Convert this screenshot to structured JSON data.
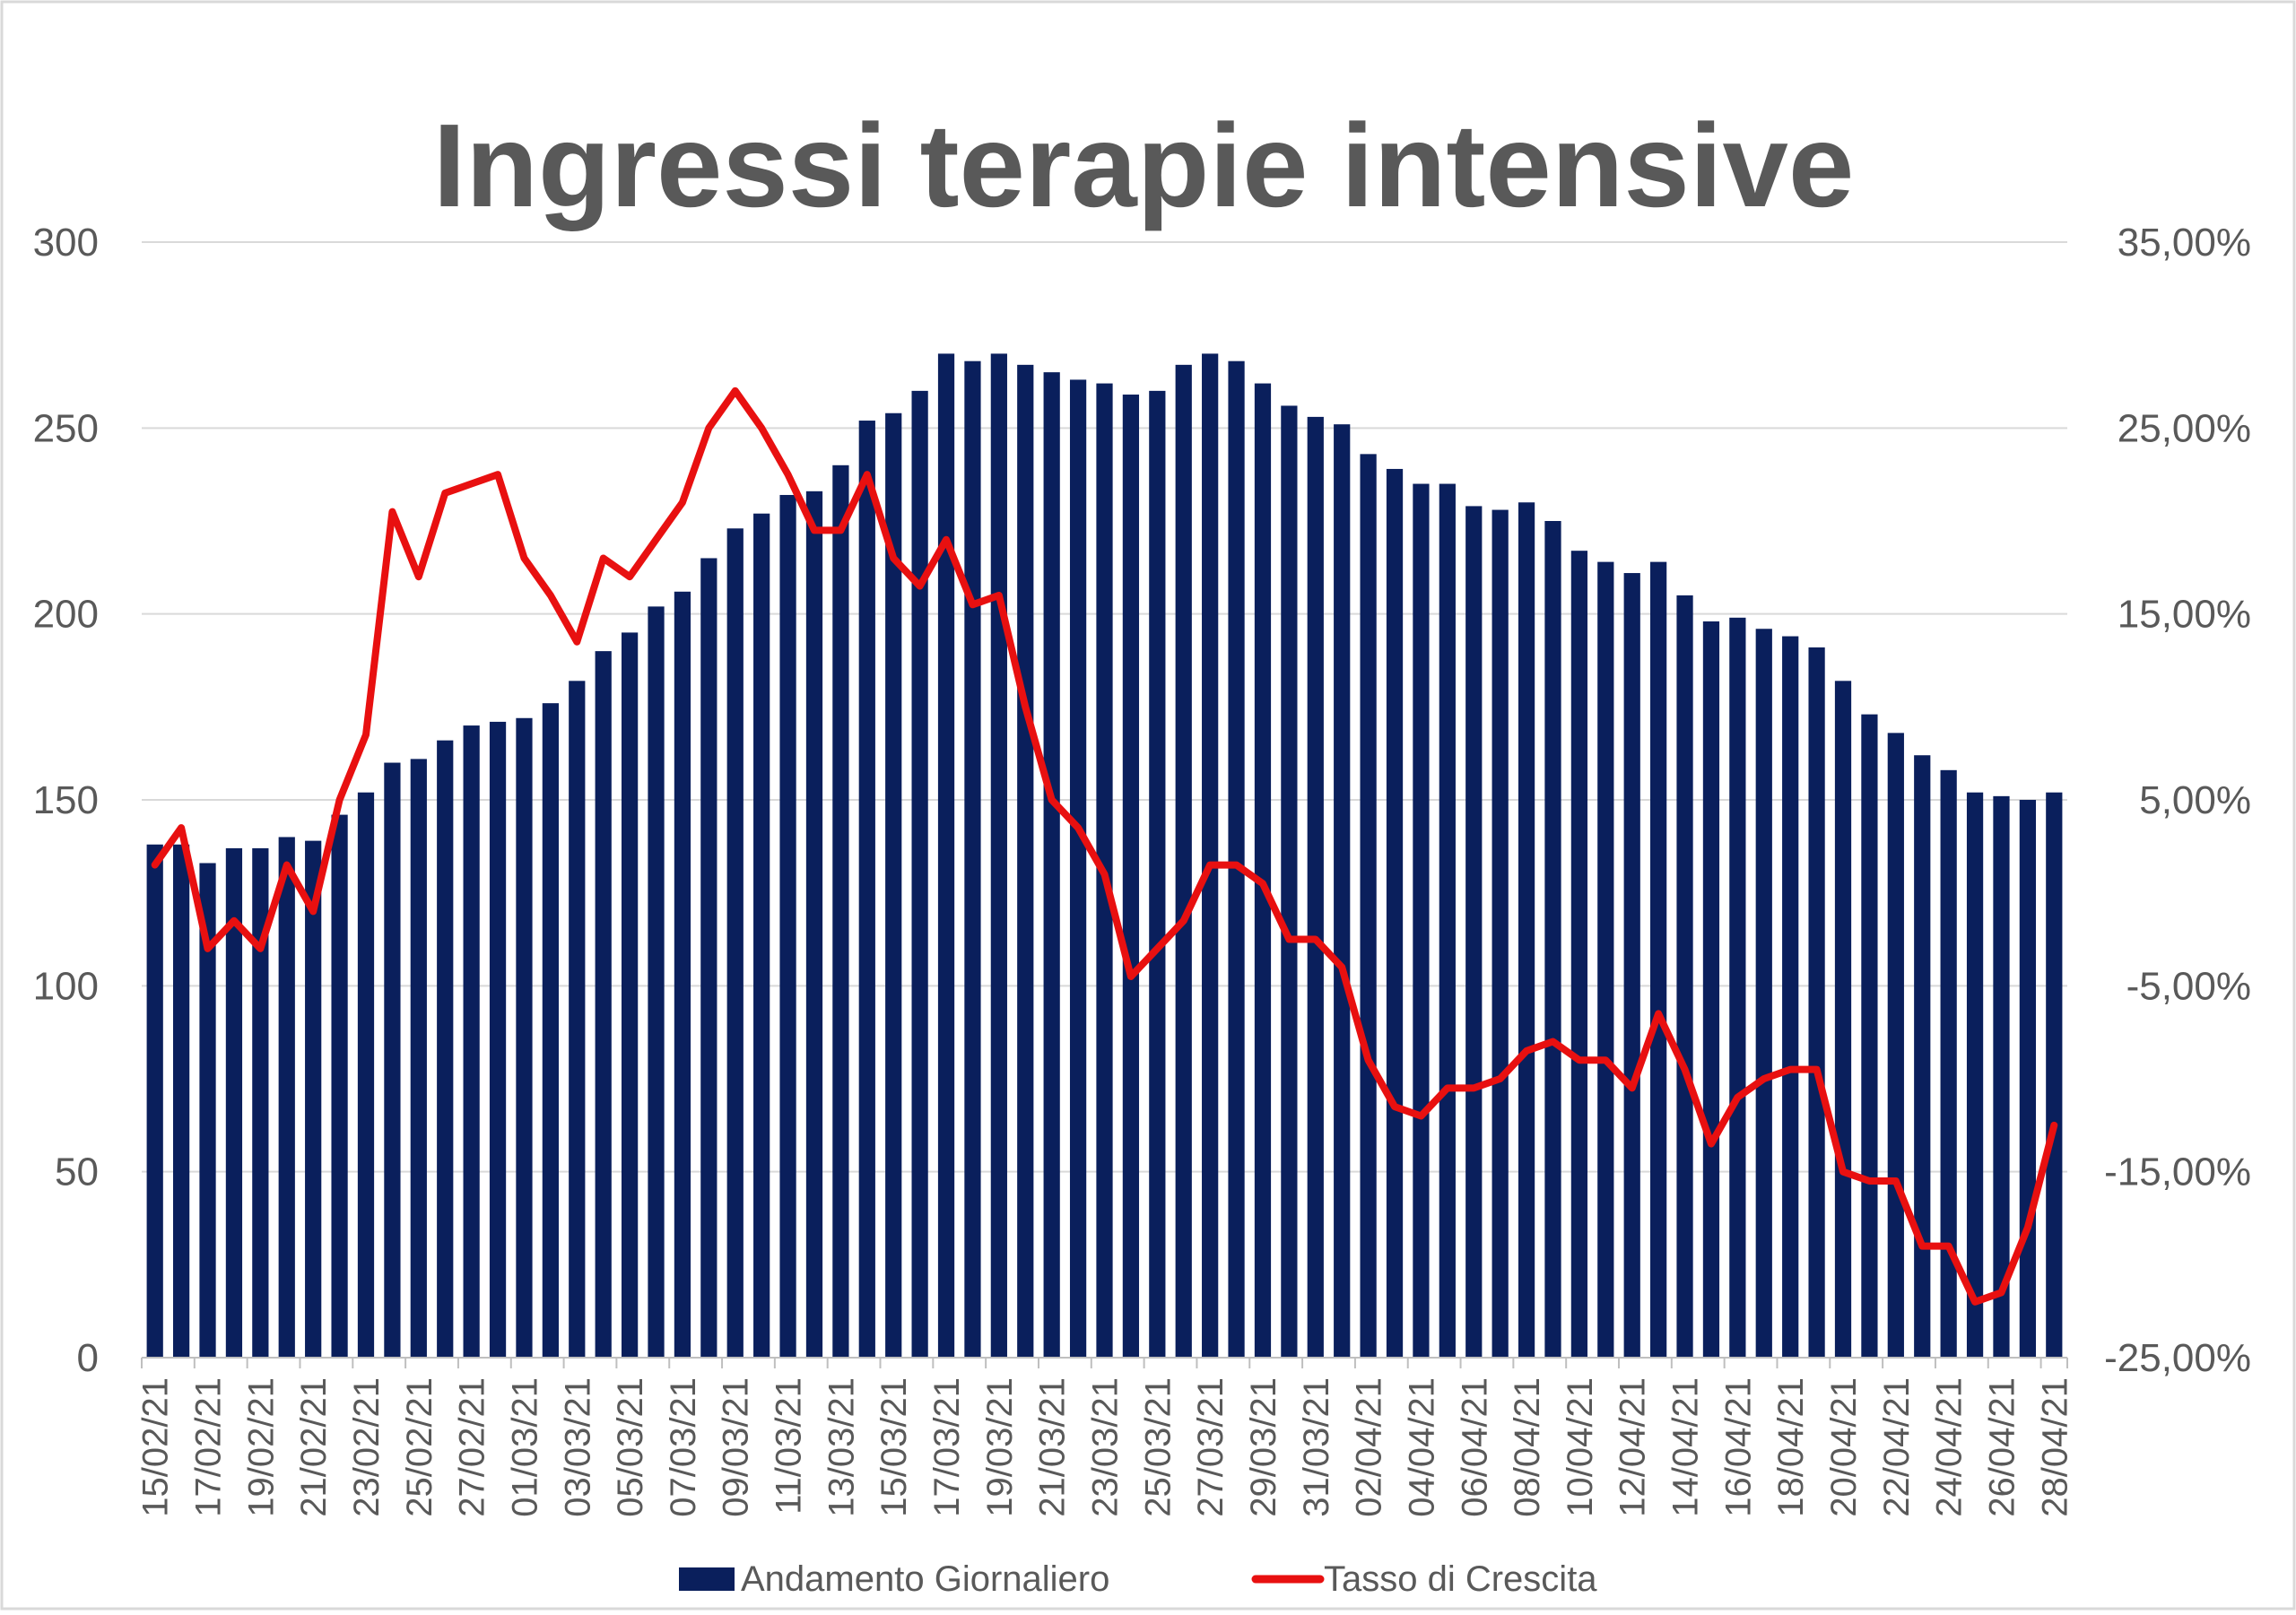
{
  "chart_data": {
    "type": "bar+line",
    "title": "Ingressi terapie intensive",
    "categories": [
      "15/02/21",
      "16/02/21",
      "17/02/21",
      "18/02/21",
      "19/02/21",
      "20/02/21",
      "21/02/21",
      "22/02/21",
      "23/02/21",
      "24/02/21",
      "25/02/21",
      "26/02/21",
      "27/02/21",
      "28/02/21",
      "01/03/21",
      "02/03/21",
      "03/03/21",
      "04/03/21",
      "05/03/21",
      "06/03/21",
      "07/03/21",
      "08/03/21",
      "09/03/21",
      "10/03/21",
      "11/03/21",
      "12/03/21",
      "13/03/21",
      "14/03/21",
      "15/03/21",
      "16/03/21",
      "17/03/21",
      "18/03/21",
      "19/03/21",
      "20/03/21",
      "21/03/21",
      "22/03/21",
      "23/03/21",
      "24/03/21",
      "25/03/21",
      "26/03/21",
      "27/03/21",
      "28/03/21",
      "29/03/21",
      "30/03/21",
      "31/03/21",
      "01/04/21",
      "02/04/21",
      "03/04/21",
      "04/04/21",
      "05/04/21",
      "06/04/21",
      "07/04/21",
      "08/04/21",
      "09/04/21",
      "10/04/21",
      "11/04/21",
      "12/04/21",
      "13/04/21",
      "14/04/21",
      "15/04/21",
      "16/04/21",
      "17/04/21",
      "18/04/21",
      "19/04/21",
      "20/04/21",
      "21/04/21",
      "22/04/21",
      "23/04/21",
      "24/04/21",
      "25/04/21",
      "26/04/21",
      "27/04/21",
      "28/04/21"
    ],
    "x_tick_labels": [
      "15/02/21",
      "17/02/21",
      "19/02/21",
      "21/02/21",
      "23/02/21",
      "25/02/21",
      "27/02/21",
      "01/03/21",
      "03/03/21",
      "05/03/21",
      "07/03/21",
      "09/03/21",
      "11/03/21",
      "13/03/21",
      "15/03/21",
      "17/03/21",
      "19/03/21",
      "21/03/21",
      "23/03/21",
      "25/03/21",
      "27/03/21",
      "29/03/21",
      "31/03/21",
      "02/04/21",
      "04/04/21",
      "06/04/21",
      "08/04/21",
      "10/04/21",
      "12/04/21",
      "14/04/21",
      "16/04/21",
      "18/04/21",
      "20/04/21",
      "22/04/21",
      "24/04/21",
      "26/04/21",
      "28/04/21"
    ],
    "series": [
      {
        "name": "Andamento Giornaliero",
        "type": "bar",
        "axis": "left",
        "color": "#0a1f5c",
        "values": [
          138,
          138,
          133,
          137,
          137,
          140,
          139,
          146,
          152,
          160,
          161,
          166,
          170,
          171,
          172,
          176,
          182,
          190,
          195,
          202,
          206,
          215,
          223,
          227,
          232,
          233,
          240,
          252,
          254,
          260,
          270,
          268,
          270,
          267,
          265,
          263,
          262,
          259,
          260,
          267,
          270,
          268,
          262,
          256,
          253,
          251,
          243,
          239,
          235,
          235,
          229,
          228,
          230,
          225,
          217,
          214,
          211,
          214,
          205,
          198,
          199,
          196,
          194,
          191,
          182,
          173,
          168,
          162,
          158,
          152,
          151,
          150,
          152
        ]
      },
      {
        "name": "Tasso di Crescita",
        "type": "line",
        "axis": "right",
        "color": "#e81010",
        "values": [
          1.5,
          3.5,
          -3.0,
          -1.5,
          -3.0,
          1.5,
          -1.0,
          5.0,
          8.5,
          20.5,
          17.0,
          21.5,
          22.0,
          22.5,
          18.0,
          16.0,
          13.5,
          18.0,
          17.0,
          19.0,
          21.0,
          25.0,
          27.0,
          25.0,
          22.5,
          19.5,
          19.5,
          22.5,
          18.0,
          16.5,
          19.0,
          15.5,
          16.0,
          10.0,
          5.0,
          3.5,
          1.0,
          -4.5,
          -3.0,
          -1.5,
          1.5,
          1.5,
          0.5,
          -2.5,
          -2.5,
          -4.0,
          -9.0,
          -11.5,
          -12.0,
          -10.5,
          -10.5,
          -10.0,
          -8.5,
          -8.0,
          -9.0,
          -9.0,
          -10.5,
          -6.5,
          -9.5,
          -13.5,
          -11.0,
          -10.0,
          -9.5,
          -9.5,
          -15.0,
          -15.5,
          -15.5,
          -19.0,
          -19.0,
          -22.0,
          -21.5,
          -18.0,
          -12.5
        ]
      }
    ],
    "y_left": {
      "min": 0,
      "max": 300,
      "ticks": [
        0,
        50,
        100,
        150,
        200,
        250,
        300
      ],
      "tick_labels": [
        "0",
        "50",
        "100",
        "150",
        "200",
        "250",
        "300"
      ]
    },
    "y_right": {
      "min": -25,
      "max": 35,
      "ticks": [
        -25,
        -15,
        -5,
        5,
        15,
        25,
        35
      ],
      "tick_labels": [
        "-25,00%",
        "-15,00%",
        "-5,00%",
        "5,00%",
        "15,00%",
        "25,00%",
        "35,00%"
      ]
    },
    "grid": true,
    "legend_position": "bottom"
  }
}
